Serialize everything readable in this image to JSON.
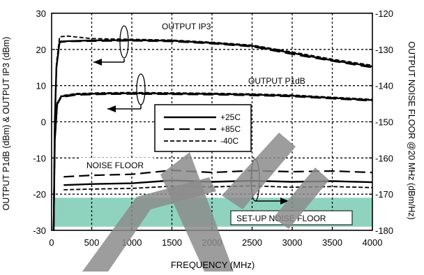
{
  "chart_data": {
    "type": "line",
    "xlabel": "FREQUENCY (MHz)",
    "ylabel": "OUTPUT P1dB (dBm) & OUTPUT IP3 (dBm)",
    "y2label": "OUTPUT NOISE FLOOR @20 MHz (dBm/Hz)",
    "xlim": [
      0,
      4000
    ],
    "ylim": [
      -30,
      30
    ],
    "y2lim": [
      -180,
      -120
    ],
    "xticks": [
      0,
      500,
      1000,
      1500,
      2000,
      2500,
      3000,
      3500,
      4000
    ],
    "yticks": [
      -30,
      -20,
      -10,
      0,
      10,
      20,
      30
    ],
    "y2ticks": [
      -180,
      -170,
      -160,
      -150,
      -140,
      -130,
      -120
    ],
    "grid": true,
    "legend": {
      "position": "center",
      "entries": [
        {
          "label": "+25C",
          "style": "solid"
        },
        {
          "label": "+85C",
          "style": "long-dash"
        },
        {
          "label": "-40C",
          "style": "short-dash"
        }
      ]
    },
    "annotations": [
      {
        "text": "OUTPUT IP3"
      },
      {
        "text": "OUTPUT P1dB"
      },
      {
        "text": "NOISE FLOOR"
      },
      {
        "text": "SET-UP NOISE FLOOR"
      }
    ],
    "setup_band_y2": [
      -179,
      -171
    ],
    "setup_band_color": "#8fd3bf",
    "watermark_color": "#8c8c8c",
    "curve_groups": [
      {
        "name": "OUTPUT IP3",
        "axis": "left",
        "series": [
          {
            "temp": "+25C",
            "style": "solid",
            "points": [
              [
                25,
                -30
              ],
              [
                40,
                0
              ],
              [
                60,
                15
              ],
              [
                100,
                22.2
              ],
              [
                200,
                22.3
              ],
              [
                500,
                22.5
              ],
              [
                1000,
                22.6
              ],
              [
                1500,
                22.4
              ],
              [
                2000,
                21.8
              ],
              [
                2500,
                21
              ],
              [
                3000,
                19
              ],
              [
                3500,
                17
              ],
              [
                4000,
                15.3
              ]
            ]
          },
          {
            "temp": "+85C",
            "style": "long-dash",
            "points": [
              [
                25,
                -30
              ],
              [
                40,
                0
              ],
              [
                60,
                15
              ],
              [
                100,
                22
              ],
              [
                200,
                22.2
              ],
              [
                500,
                22.3
              ],
              [
                1000,
                22.4
              ],
              [
                1500,
                22.2
              ],
              [
                2000,
                21.6
              ],
              [
                2500,
                20.8
              ],
              [
                3000,
                18.7
              ],
              [
                3500,
                16.8
              ],
              [
                4000,
                15
              ]
            ]
          },
          {
            "temp": "-40C",
            "style": "short-dash",
            "points": [
              [
                25,
                -30
              ],
              [
                40,
                0
              ],
              [
                60,
                16
              ],
              [
                100,
                23.5
              ],
              [
                200,
                23.7
              ],
              [
                500,
                23
              ],
              [
                1000,
                22.8
              ],
              [
                1500,
                22.6
              ],
              [
                2000,
                22
              ],
              [
                2500,
                21.2
              ],
              [
                3000,
                19.3
              ],
              [
                3500,
                17.3
              ],
              [
                4000,
                15.6
              ]
            ]
          }
        ]
      },
      {
        "name": "OUTPUT P1dB",
        "axis": "left",
        "series": [
          {
            "temp": "+25C",
            "style": "solid",
            "points": [
              [
                25,
                -30
              ],
              [
                40,
                -5
              ],
              [
                70,
                5
              ],
              [
                120,
                7
              ],
              [
                300,
                7.6
              ],
              [
                600,
                7.8
              ],
              [
                1000,
                7.9
              ],
              [
                2000,
                7.7
              ],
              [
                2500,
                7.5
              ],
              [
                3000,
                7.2
              ],
              [
                3500,
                6.6
              ],
              [
                4000,
                6
              ]
            ]
          },
          {
            "temp": "+85C",
            "style": "long-dash",
            "points": [
              [
                25,
                -30
              ],
              [
                40,
                -5
              ],
              [
                70,
                4.8
              ],
              [
                120,
                6.8
              ],
              [
                300,
                7.4
              ],
              [
                600,
                7.6
              ],
              [
                1000,
                7.7
              ],
              [
                2000,
                7.5
              ],
              [
                2500,
                7.3
              ],
              [
                3000,
                7
              ],
              [
                3500,
                6.4
              ],
              [
                4000,
                5.8
              ]
            ]
          },
          {
            "temp": "-40C",
            "style": "short-dash",
            "points": [
              [
                25,
                -30
              ],
              [
                40,
                -5
              ],
              [
                70,
                5.2
              ],
              [
                120,
                7.2
              ],
              [
                300,
                7.8
              ],
              [
                600,
                8
              ],
              [
                1000,
                8.1
              ],
              [
                2000,
                7.9
              ],
              [
                2500,
                7.7
              ],
              [
                3000,
                7.4
              ],
              [
                3500,
                6.8
              ],
              [
                4000,
                6.2
              ]
            ]
          }
        ]
      },
      {
        "name": "NOISE FLOOR",
        "axis": "right",
        "series": [
          {
            "temp": "+25C",
            "style": "solid",
            "points": [
              [
                150,
                -167.5
              ],
              [
                500,
                -167.2
              ],
              [
                1000,
                -167
              ],
              [
                1500,
                -166.2
              ],
              [
                2000,
                -166.6
              ],
              [
                2500,
                -166.3
              ],
              [
                3000,
                -166.6
              ],
              [
                3500,
                -166.4
              ],
              [
                4000,
                -166.7
              ]
            ]
          },
          {
            "temp": "+85C",
            "style": "long-dash",
            "points": [
              [
                150,
                -165.2
              ],
              [
                500,
                -164.8
              ],
              [
                1000,
                -164.5
              ],
              [
                1500,
                -163.4
              ],
              [
                2000,
                -164
              ],
              [
                2500,
                -163.5
              ],
              [
                3000,
                -163.8
              ],
              [
                3500,
                -163.6
              ],
              [
                4000,
                -164
              ]
            ]
          },
          {
            "temp": "-40C",
            "style": "short-dash",
            "points": [
              [
                150,
                -168.8
              ],
              [
                500,
                -168.6
              ],
              [
                1000,
                -168.4
              ],
              [
                1500,
                -167.8
              ],
              [
                2000,
                -168
              ],
              [
                2500,
                -167.7
              ],
              [
                3000,
                -168.1
              ],
              [
                3500,
                -167.9
              ],
              [
                4000,
                -168.2
              ]
            ]
          }
        ]
      }
    ]
  }
}
